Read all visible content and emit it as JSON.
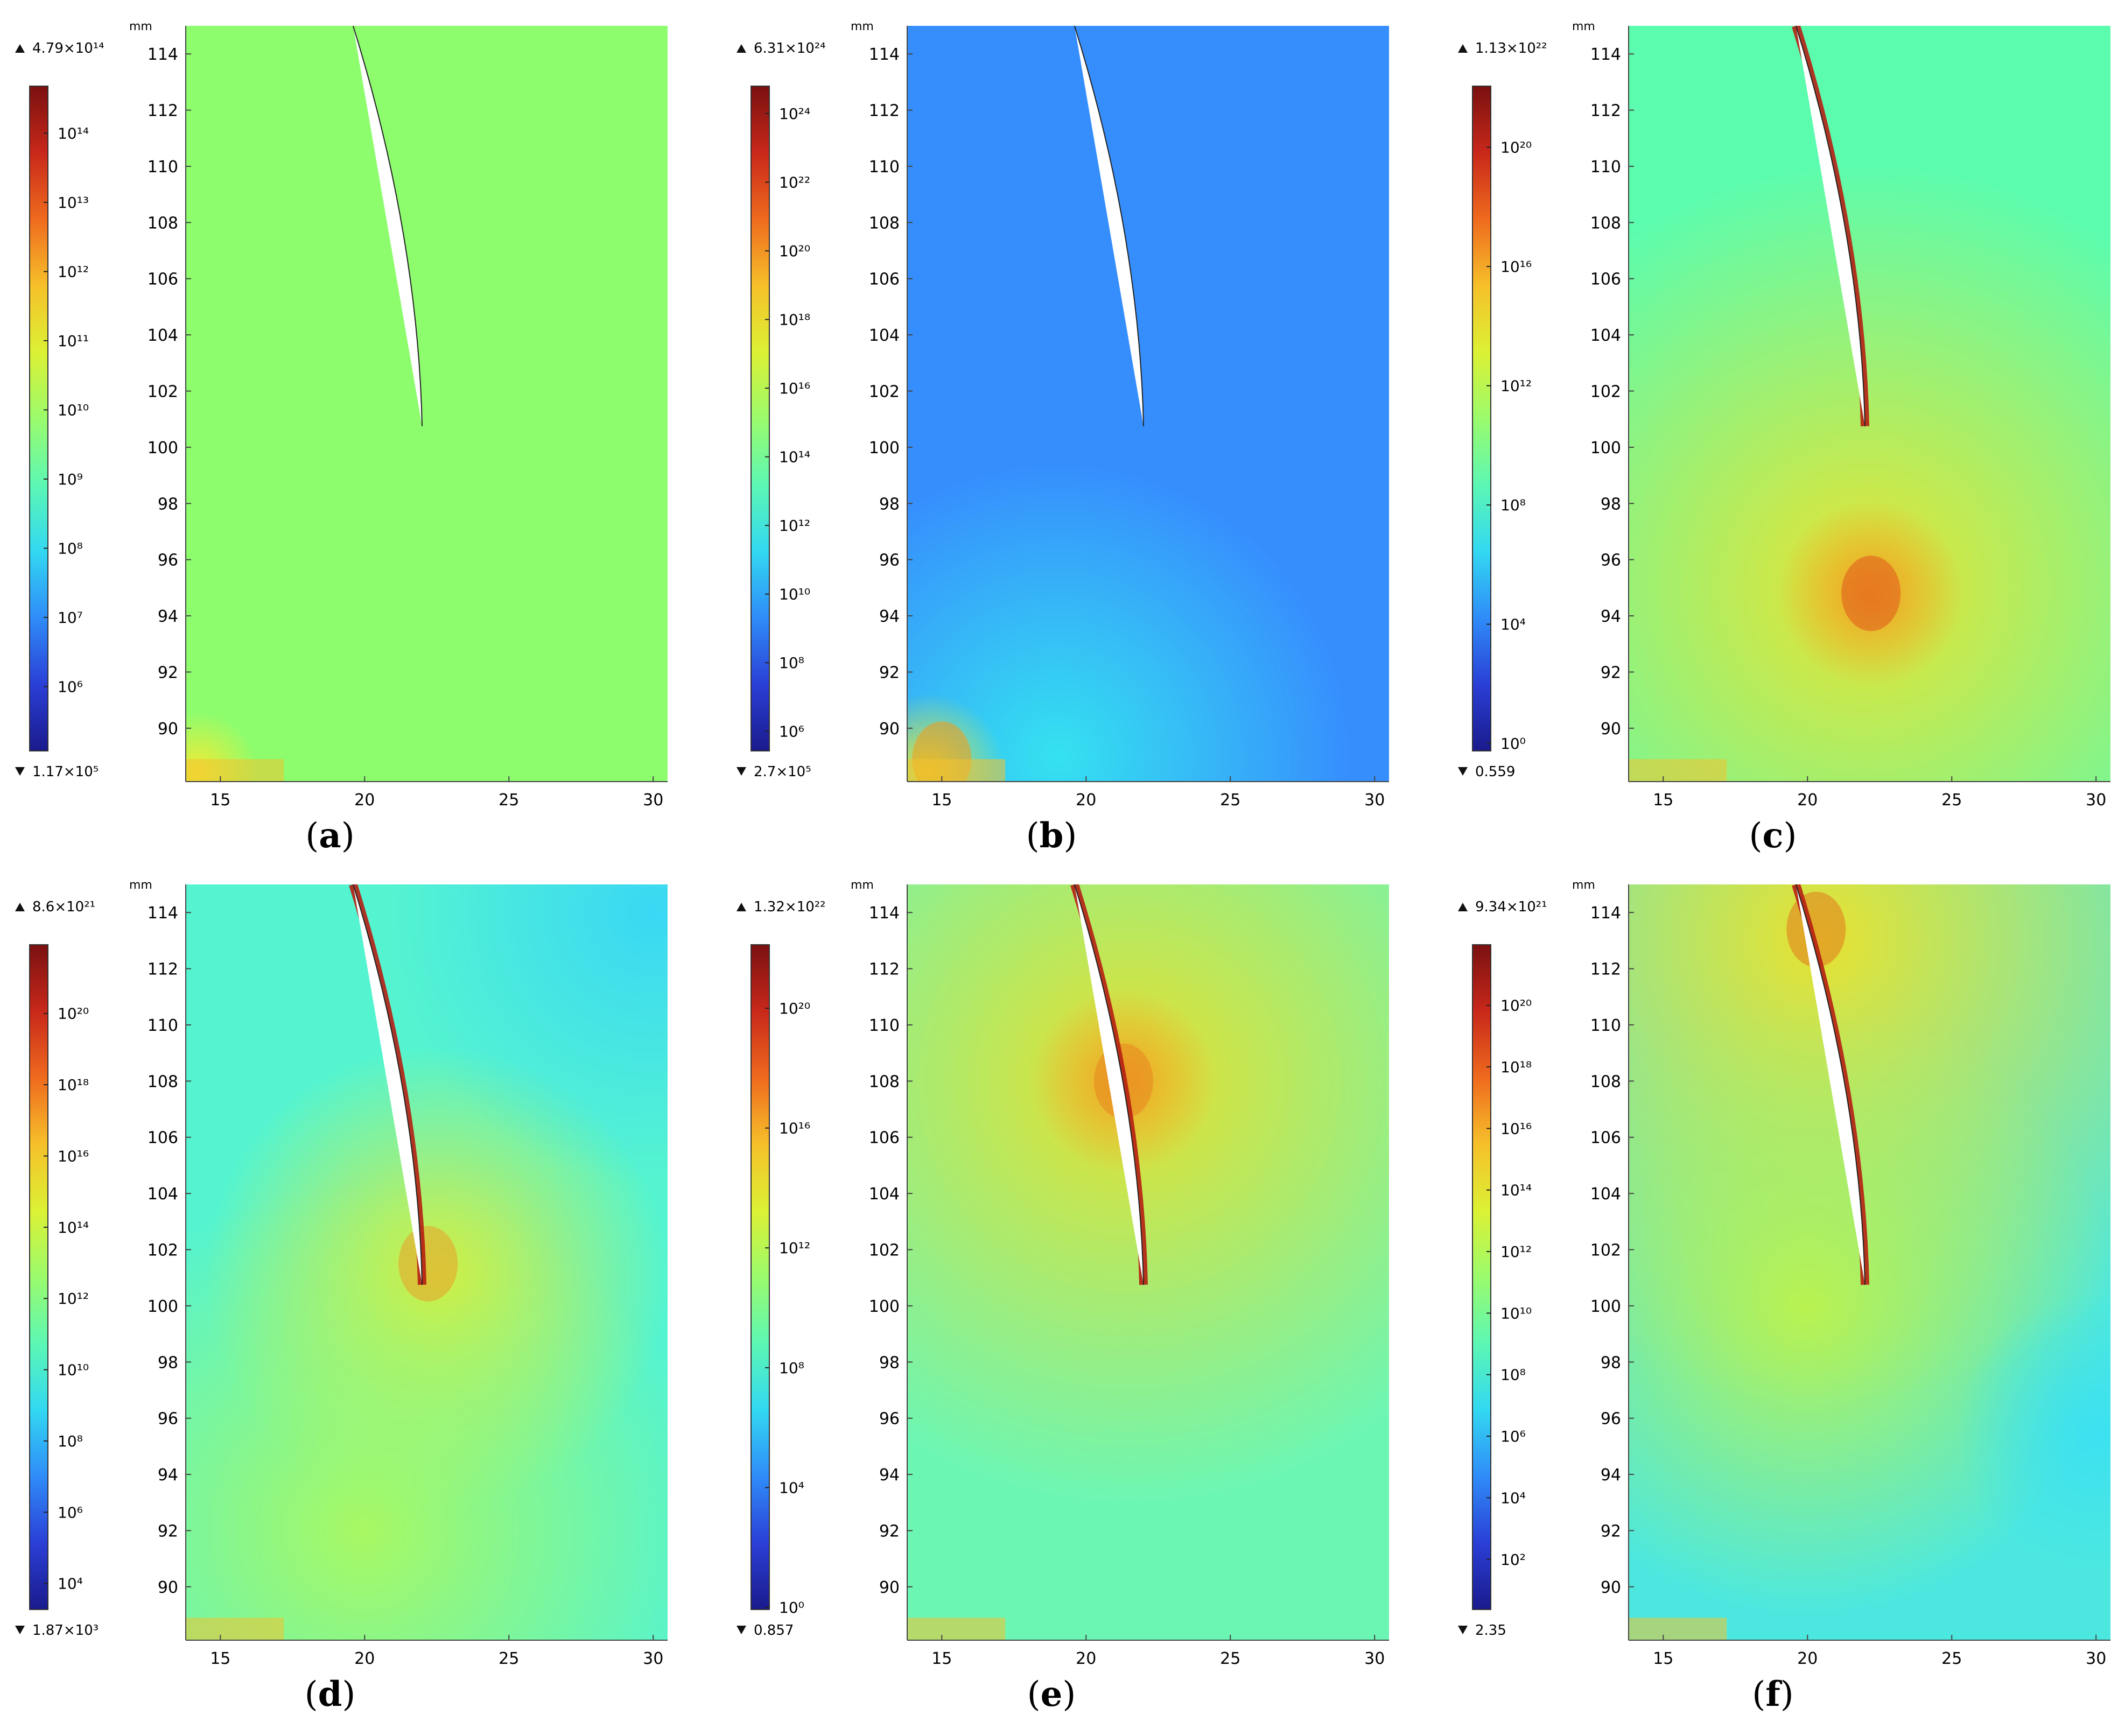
{
  "chart_data": [
    {
      "type": "heatmap",
      "panel_label": "a",
      "axis_unit": "mm",
      "xlim": [
        13.8,
        30.5
      ],
      "ylim": [
        88.1,
        115
      ],
      "x_ticks": [
        "15",
        "20",
        "25",
        "30"
      ],
      "y_ticks": [
        "90",
        "92",
        "94",
        "96",
        "98",
        "100",
        "102",
        "104",
        "106",
        "108",
        "110",
        "112",
        "114"
      ],
      "colorbar": {
        "scale": "log",
        "max_label": "4.79×10¹⁴",
        "min_label": "1.17×10⁵",
        "log_min": 5.07,
        "log_max": 14.68,
        "ticks": [
          "10⁶",
          "10⁷",
          "10⁸",
          "10⁹",
          "10¹⁰",
          "10¹¹",
          "10¹²",
          "10¹³",
          "10¹⁴"
        ],
        "tick_exponents": [
          6,
          7,
          8,
          9,
          10,
          11,
          12,
          13,
          14
        ]
      },
      "field": {
        "base": "#8dfd6e",
        "gradients": [
          {
            "x": 14.2,
            "y": 88.4,
            "color": "#f5ea33",
            "r": 0.08
          }
        ]
      },
      "edge_highlight": {
        "color": "#c42b18",
        "strength": 0
      },
      "hotspot": null
    },
    {
      "type": "heatmap",
      "panel_label": "b",
      "axis_unit": "mm",
      "xlim": [
        13.8,
        30.5
      ],
      "ylim": [
        88.1,
        115
      ],
      "x_ticks": [
        "15",
        "20",
        "25",
        "30"
      ],
      "y_ticks": [
        "90",
        "92",
        "94",
        "96",
        "98",
        "100",
        "102",
        "104",
        "106",
        "108",
        "110",
        "112",
        "114"
      ],
      "colorbar": {
        "scale": "log",
        "max_label": "6.31×10²⁴",
        "min_label": "2.7×10⁵",
        "log_min": 5.43,
        "log_max": 24.8,
        "ticks": [
          "10⁶",
          "10⁸",
          "10¹⁰",
          "10¹²",
          "10¹⁴",
          "10¹⁶",
          "10¹⁸",
          "10²⁰",
          "10²²",
          "10²⁴"
        ],
        "tick_exponents": [
          6,
          8,
          10,
          12,
          14,
          16,
          18,
          20,
          22,
          24
        ]
      },
      "field": {
        "base": "#368efd",
        "gradients": [
          {
            "x": 19,
            "y": 89,
            "color": "#35e2f0",
            "r": 0.38
          },
          {
            "x": 14.5,
            "y": 88.5,
            "color": "#e0e83a",
            "r": 0.1
          }
        ]
      },
      "edge_highlight": {
        "color": "#c42b18",
        "strength": 0
      },
      "hotspot": {
        "x": 15,
        "y": 88.9,
        "color": "#f09a1c"
      }
    },
    {
      "type": "heatmap",
      "panel_label": "c",
      "axis_unit": "mm",
      "xlim": [
        13.8,
        30.5
      ],
      "ylim": [
        88.1,
        115
      ],
      "x_ticks": [
        "15",
        "20",
        "25",
        "30"
      ],
      "y_ticks": [
        "90",
        "92",
        "94",
        "96",
        "98",
        "100",
        "102",
        "104",
        "106",
        "108",
        "110",
        "112",
        "114"
      ],
      "colorbar": {
        "scale": "log",
        "max_label": "1.13×10²²",
        "min_label": "0.559",
        "log_min": -0.25,
        "log_max": 22.05,
        "ticks": [
          "10⁰",
          "10⁴",
          "10⁸",
          "10¹²",
          "10¹⁶",
          "10²⁰"
        ],
        "tick_exponents": [
          0,
          4,
          8,
          12,
          16,
          20
        ]
      },
      "field": {
        "base": "#5cfcae",
        "gradients": [
          {
            "x": 22,
            "y": 95,
            "color": "#e8e330",
            "r": 0.55
          },
          {
            "x": 22.2,
            "y": 94.8,
            "color": "#f0a024",
            "r": 0.12
          }
        ]
      },
      "edge_highlight": {
        "color": "#b51f14",
        "strength": 1
      },
      "hotspot": {
        "x": 22.2,
        "y": 94.8,
        "color": "#e0581c"
      }
    },
    {
      "type": "heatmap",
      "panel_label": "d",
      "axis_unit": "mm",
      "xlim": [
        13.8,
        30.5
      ],
      "ylim": [
        88.1,
        115
      ],
      "x_ticks": [
        "15",
        "20",
        "25",
        "30"
      ],
      "y_ticks": [
        "90",
        "92",
        "94",
        "96",
        "98",
        "100",
        "102",
        "104",
        "106",
        "108",
        "110",
        "112",
        "114"
      ],
      "colorbar": {
        "scale": "log",
        "max_label": "8.6×10²¹",
        "min_label": "1.87×10³",
        "log_min": 3.27,
        "log_max": 21.93,
        "ticks": [
          "10⁴",
          "10⁶",
          "10⁸",
          "10¹⁰",
          "10¹²",
          "10¹⁴",
          "10¹⁶",
          "10¹⁸",
          "10²⁰"
        ],
        "tick_exponents": [
          4,
          6,
          8,
          10,
          12,
          14,
          16,
          18,
          20
        ]
      },
      "field": {
        "base": "#55f4d0",
        "gradients": [
          {
            "x": 22.5,
            "y": 101,
            "color": "#dcec3a",
            "r": 0.3
          },
          {
            "x": 20,
            "y": 92,
            "color": "#a8f862",
            "r": 0.45
          },
          {
            "x": 30,
            "y": 114,
            "color": "#3ad8f4",
            "r": 0.35
          }
        ]
      },
      "edge_highlight": {
        "color": "#b51f14",
        "strength": 1
      },
      "hotspot": {
        "x": 22.2,
        "y": 101.5,
        "color": "#e8a02a"
      }
    },
    {
      "type": "heatmap",
      "panel_label": "e",
      "axis_unit": "mm",
      "xlim": [
        13.8,
        30.5
      ],
      "ylim": [
        88.1,
        115
      ],
      "x_ticks": [
        "15",
        "20",
        "25",
        "30"
      ],
      "y_ticks": [
        "90",
        "92",
        "94",
        "96",
        "98",
        "100",
        "102",
        "104",
        "106",
        "108",
        "110",
        "112",
        "114"
      ],
      "colorbar": {
        "scale": "log",
        "max_label": "1.32×10²²",
        "min_label": "0.857",
        "log_min": -0.07,
        "log_max": 22.12,
        "ticks": [
          "10⁰",
          "10⁴",
          "10⁸",
          "10¹²",
          "10¹⁶",
          "10²⁰"
        ],
        "tick_exponents": [
          0,
          4,
          8,
          12,
          16,
          20
        ]
      },
      "field": {
        "base": "#6cf6b4",
        "gradients": [
          {
            "x": 21.5,
            "y": 108,
            "color": "#e6e02e",
            "r": 0.55
          },
          {
            "x": 21.3,
            "y": 108,
            "color": "#f0a428",
            "r": 0.12
          }
        ]
      },
      "edge_highlight": {
        "color": "#b51f14",
        "strength": 1
      },
      "hotspot": {
        "x": 21.3,
        "y": 108,
        "color": "#e8861f"
      }
    },
    {
      "type": "heatmap",
      "panel_label": "f",
      "axis_unit": "mm",
      "xlim": [
        13.8,
        30.5
      ],
      "ylim": [
        88.1,
        115
      ],
      "x_ticks": [
        "15",
        "20",
        "25",
        "30"
      ],
      "y_ticks": [
        "90",
        "92",
        "94",
        "96",
        "98",
        "100",
        "102",
        "104",
        "106",
        "108",
        "110",
        "112",
        "114"
      ],
      "colorbar": {
        "scale": "log",
        "max_label": "9.34×10²¹",
        "min_label": "2.35",
        "log_min": 0.37,
        "log_max": 21.97,
        "ticks": [
          "10²",
          "10⁴",
          "10⁶",
          "10⁸",
          "10¹⁰",
          "10¹²",
          "10¹⁴",
          "10¹⁶",
          "10¹⁸",
          "10²⁰"
        ],
        "tick_exponents": [
          2,
          4,
          6,
          8,
          10,
          12,
          14,
          16,
          18,
          20
        ]
      },
      "field": {
        "base": "#4ce8e0",
        "gradients": [
          {
            "x": 20.5,
            "y": 113,
            "color": "#e8e230",
            "r": 0.6
          },
          {
            "x": 20,
            "y": 100,
            "color": "#b9f250",
            "r": 0.4
          },
          {
            "x": 30,
            "y": 95.5,
            "color": "#3ce0f0",
            "r": 0.18
          }
        ]
      },
      "edge_highlight": {
        "color": "#b51f14",
        "strength": 1
      },
      "hotspot": {
        "x": 20.3,
        "y": 113.4,
        "color": "#e07a1e"
      }
    }
  ]
}
